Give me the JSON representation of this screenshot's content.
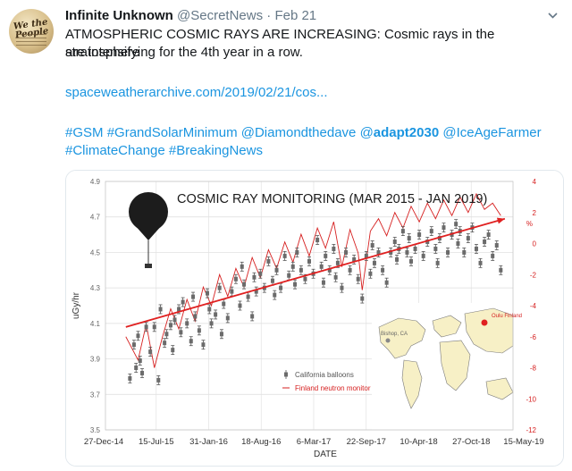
{
  "tweet": {
    "author_name": "Infinite Unknown",
    "author_handle": "@SecretNews",
    "separator": "·",
    "date": "Feb 21",
    "text_line1": "ATMOSPHERIC COSMIC RAYS ARE INCREASING: Cosmic rays in the stratosphere",
    "text_line2": "are intensifying for the 4th year in a row.",
    "link": "spaceweatherarchive.com/2019/02/21/cos...",
    "hashtags_line1": [
      "#GSM",
      "#GrandSolarMinimum",
      "@Diamondthedave",
      "@adapt2030",
      "@IceAgeFarmer"
    ],
    "hashtags_line2": [
      "#ClimateChange",
      "#BreakingNews"
    ],
    "bold_mention": "adapt2030",
    "avatar_text": "We the People",
    "icons": {
      "menu": "chevron-down-icon",
      "balloon": "balloon-icon"
    }
  },
  "chart_data": {
    "type": "scatter",
    "title": "COSMIC RAY MONITORING  (MAR 2015 - JAN 2019)",
    "xlabel": "DATE",
    "ylabel": "uGy/hr",
    "x_ticks": [
      "27-Dec-14",
      "15-Jul-15",
      "31-Jan-16",
      "18-Aug-16",
      "6-Mar-17",
      "22-Sep-17",
      "10-Apr-18",
      "27-Oct-18",
      "15-May-19"
    ],
    "y_ticks": [
      "3.5",
      "3.7",
      "3.9",
      "4.1",
      "4.3",
      "4.5",
      "4.7",
      "4.9"
    ],
    "ylim": [
      3.5,
      4.9
    ],
    "y2_unit": "%",
    "y2_ticks": [
      "4",
      "2",
      "0",
      "-2",
      "-4",
      "-6",
      "-8",
      "-10",
      "-12"
    ],
    "y2lim": [
      -12,
      4
    ],
    "legend": [
      "California balloons",
      "Finland neutron monitor"
    ],
    "legend_position": "bottom-left",
    "map_labels": {
      "balloon_site": "Bishop, CA",
      "neutron_site": "Oulu Finland"
    },
    "colors": {
      "balloons": "#6b6b6b",
      "neutron": "#d62020",
      "trend": "#e02020",
      "map_land": "#f7f0c6"
    },
    "trend_line": {
      "start": [
        0.05,
        4.08
      ],
      "end": [
        0.98,
        4.69
      ]
    },
    "series": [
      {
        "name": "California balloons",
        "points": [
          [
            0.06,
            3.79
          ],
          [
            0.07,
            3.98
          ],
          [
            0.075,
            3.85
          ],
          [
            0.08,
            4.03
          ],
          [
            0.085,
            3.89
          ],
          [
            0.09,
            3.82
          ],
          [
            0.1,
            4.08
          ],
          [
            0.11,
            3.94
          ],
          [
            0.12,
            4.08
          ],
          [
            0.13,
            3.78
          ],
          [
            0.135,
            4.18
          ],
          [
            0.145,
            3.99
          ],
          [
            0.15,
            4.04
          ],
          [
            0.16,
            4.09
          ],
          [
            0.165,
            3.95
          ],
          [
            0.17,
            4.12
          ],
          [
            0.18,
            4.18
          ],
          [
            0.185,
            4.05
          ],
          [
            0.19,
            4.22
          ],
          [
            0.2,
            4.1
          ],
          [
            0.21,
            4.0
          ],
          [
            0.215,
            4.25
          ],
          [
            0.22,
            4.14
          ],
          [
            0.23,
            4.06
          ],
          [
            0.24,
            3.98
          ],
          [
            0.25,
            4.27
          ],
          [
            0.255,
            4.18
          ],
          [
            0.26,
            4.1
          ],
          [
            0.27,
            4.15
          ],
          [
            0.28,
            4.3
          ],
          [
            0.285,
            4.04
          ],
          [
            0.29,
            4.21
          ],
          [
            0.3,
            4.13
          ],
          [
            0.31,
            4.28
          ],
          [
            0.32,
            4.35
          ],
          [
            0.33,
            4.2
          ],
          [
            0.335,
            4.42
          ],
          [
            0.34,
            4.32
          ],
          [
            0.35,
            4.25
          ],
          [
            0.36,
            4.14
          ],
          [
            0.365,
            4.36
          ],
          [
            0.37,
            4.28
          ],
          [
            0.38,
            4.38
          ],
          [
            0.39,
            4.3
          ],
          [
            0.4,
            4.45
          ],
          [
            0.41,
            4.34
          ],
          [
            0.415,
            4.26
          ],
          [
            0.42,
            4.4
          ],
          [
            0.43,
            4.3
          ],
          [
            0.44,
            4.48
          ],
          [
            0.45,
            4.37
          ],
          [
            0.46,
            4.42
          ],
          [
            0.465,
            4.32
          ],
          [
            0.47,
            4.5
          ],
          [
            0.48,
            4.4
          ],
          [
            0.49,
            4.35
          ],
          [
            0.5,
            4.45
          ],
          [
            0.51,
            4.38
          ],
          [
            0.52,
            4.57
          ],
          [
            0.53,
            4.42
          ],
          [
            0.535,
            4.33
          ],
          [
            0.54,
            4.48
          ],
          [
            0.55,
            4.4
          ],
          [
            0.56,
            4.52
          ],
          [
            0.565,
            4.36
          ],
          [
            0.57,
            4.44
          ],
          [
            0.58,
            4.3
          ],
          [
            0.59,
            4.5
          ],
          [
            0.6,
            4.4
          ],
          [
            0.61,
            4.46
          ],
          [
            0.62,
            4.35
          ],
          [
            0.63,
            4.24
          ],
          [
            0.64,
            4.48
          ],
          [
            0.65,
            4.38
          ],
          [
            0.655,
            4.54
          ],
          [
            0.66,
            4.44
          ],
          [
            0.67,
            4.5
          ],
          [
            0.68,
            4.4
          ],
          [
            0.69,
            4.33
          ],
          [
            0.7,
            4.5
          ],
          [
            0.71,
            4.56
          ],
          [
            0.715,
            4.46
          ],
          [
            0.72,
            4.52
          ],
          [
            0.73,
            4.62
          ],
          [
            0.74,
            4.5
          ],
          [
            0.745,
            4.58
          ],
          [
            0.75,
            4.45
          ],
          [
            0.76,
            4.52
          ],
          [
            0.77,
            4.6
          ],
          [
            0.78,
            4.48
          ],
          [
            0.79,
            4.56
          ],
          [
            0.8,
            4.62
          ],
          [
            0.81,
            4.52
          ],
          [
            0.815,
            4.44
          ],
          [
            0.82,
            4.58
          ],
          [
            0.83,
            4.64
          ],
          [
            0.84,
            4.5
          ],
          [
            0.85,
            4.6
          ],
          [
            0.86,
            4.66
          ],
          [
            0.865,
            4.55
          ],
          [
            0.87,
            4.62
          ],
          [
            0.88,
            4.5
          ],
          [
            0.89,
            4.58
          ],
          [
            0.9,
            4.64
          ],
          [
            0.91,
            4.52
          ],
          [
            0.92,
            4.44
          ],
          [
            0.93,
            4.56
          ],
          [
            0.94,
            4.6
          ],
          [
            0.95,
            4.48
          ],
          [
            0.96,
            4.54
          ],
          [
            0.97,
            4.4
          ]
        ]
      },
      {
        "name": "Finland neutron monitor",
        "points": [
          [
            0.05,
            -6.0
          ],
          [
            0.08,
            -7.5
          ],
          [
            0.1,
            -5.2
          ],
          [
            0.12,
            -8.0
          ],
          [
            0.14,
            -6.0
          ],
          [
            0.16,
            -4.2
          ],
          [
            0.18,
            -5.5
          ],
          [
            0.2,
            -3.6
          ],
          [
            0.22,
            -5.0
          ],
          [
            0.24,
            -2.8
          ],
          [
            0.26,
            -4.0
          ],
          [
            0.28,
            -2.0
          ],
          [
            0.3,
            -3.4
          ],
          [
            0.32,
            -1.6
          ],
          [
            0.34,
            -2.8
          ],
          [
            0.36,
            -0.9
          ],
          [
            0.38,
            -2.2
          ],
          [
            0.4,
            -0.4
          ],
          [
            0.42,
            -1.6
          ],
          [
            0.44,
            0.1
          ],
          [
            0.46,
            -1.2
          ],
          [
            0.48,
            0.6
          ],
          [
            0.5,
            -0.8
          ],
          [
            0.52,
            1.0
          ],
          [
            0.54,
            -0.3
          ],
          [
            0.56,
            1.4
          ],
          [
            0.58,
            -1.5
          ],
          [
            0.6,
            0.9
          ],
          [
            0.62,
            -0.6
          ],
          [
            0.63,
            -3.0
          ],
          [
            0.65,
            0.8
          ],
          [
            0.67,
            1.6
          ],
          [
            0.69,
            0.5
          ],
          [
            0.71,
            2.0
          ],
          [
            0.73,
            1.0
          ],
          [
            0.75,
            2.4
          ],
          [
            0.77,
            1.4
          ],
          [
            0.79,
            2.6
          ],
          [
            0.81,
            1.6
          ],
          [
            0.83,
            2.8
          ],
          [
            0.85,
            1.8
          ],
          [
            0.87,
            3.0
          ],
          [
            0.89,
            2.0
          ],
          [
            0.91,
            3.2
          ],
          [
            0.93,
            2.2
          ],
          [
            0.95,
            2.6
          ],
          [
            0.97,
            1.8
          ]
        ]
      }
    ]
  }
}
